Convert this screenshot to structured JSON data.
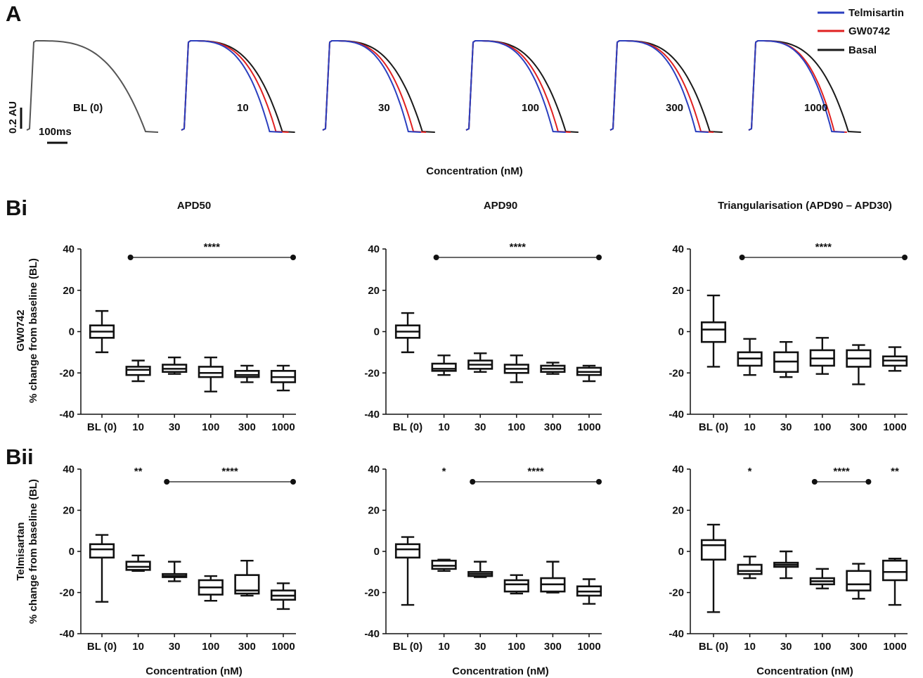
{
  "panels": {
    "A": "A",
    "Bi": "Bi",
    "Bii": "Bii"
  },
  "column_titles": [
    "APD50",
    "APD90",
    "Triangularisation (APD90 – APD30)"
  ],
  "row_axis_titles": {
    "gw": [
      "GW0742",
      "% change from baseline (BL)"
    ],
    "tel": [
      "Telmisartan",
      "% change from baseline (BL)"
    ]
  },
  "x_axis_title": "Concentration (nM)",
  "colors": {
    "telmisartan": "#2b3fbf",
    "gw0742": "#e02020",
    "basal": "#1a1a1a"
  },
  "chart_data": [
    {
      "type": "line",
      "panel": "A",
      "xlabel": "Concentration (nM)",
      "ylabel": "",
      "scale_bars": {
        "vertical": "0.2 AU",
        "horizontal": "100ms"
      },
      "legend": {
        "placement": "top-right",
        "entries": [
          "Telmisartin",
          "GW0742",
          "Basal"
        ]
      },
      "traces": [
        {
          "label": "BL (0)",
          "apd90_ms": {
            "basal": 430
          }
        },
        {
          "label": "10",
          "apd90_ms": {
            "telmisartan": 310,
            "gw0742": 335,
            "basal": 360
          }
        },
        {
          "label": "30",
          "apd90_ms": {
            "telmisartan": 300,
            "gw0742": 320,
            "basal": 355
          }
        },
        {
          "label": "100",
          "apd90_ms": {
            "telmisartan": 305,
            "gw0742": 325,
            "basal": 355
          }
        },
        {
          "label": "300",
          "apd90_ms": {
            "telmisartan": 300,
            "gw0742": 320,
            "basal": 355
          }
        },
        {
          "label": "1000",
          "apd90_ms": {
            "telmisartan": 290,
            "gw0742": 300,
            "basal": 355
          }
        }
      ]
    },
    {
      "type": "box",
      "panel": "Bi",
      "title": "APD50",
      "ylabel": "% change from baseline (BL)",
      "ylim": [
        -40,
        40
      ],
      "categories": [
        "BL (0)",
        "10",
        "30",
        "100",
        "300",
        "1000"
      ],
      "boxes": [
        {
          "min": -10,
          "q1": -3,
          "median": 0,
          "q3": 3,
          "max": 10
        },
        {
          "min": -24,
          "q1": -21,
          "median": -18.5,
          "q3": -17,
          "max": -14
        },
        {
          "min": -20.5,
          "q1": -19.5,
          "median": -18,
          "q3": -16,
          "max": -12.5
        },
        {
          "min": -29,
          "q1": -22,
          "median": -20,
          "q3": -17,
          "max": -12.5
        },
        {
          "min": -24.5,
          "q1": -22,
          "median": -21,
          "q3": -19,
          "max": -16.5
        },
        {
          "min": -28.5,
          "q1": -24.5,
          "median": -22,
          "q3": -19,
          "max": -16.5
        }
      ],
      "significance": [
        {
          "label": "****",
          "from": "10",
          "to": "1000"
        }
      ]
    },
    {
      "type": "box",
      "panel": "Bi",
      "title": "APD90",
      "ylabel": "% change from baseline (BL)",
      "ylim": [
        -40,
        40
      ],
      "categories": [
        "BL (0)",
        "10",
        "30",
        "100",
        "300",
        "1000"
      ],
      "boxes": [
        {
          "min": -10,
          "q1": -3,
          "median": 0,
          "q3": 3,
          "max": 9
        },
        {
          "min": -21,
          "q1": -19,
          "median": -18,
          "q3": -15.5,
          "max": -11.5
        },
        {
          "min": -19.5,
          "q1": -18,
          "median": -16,
          "q3": -14,
          "max": -10.5
        },
        {
          "min": -24.5,
          "q1": -20,
          "median": -18,
          "q3": -16,
          "max": -11.5
        },
        {
          "min": -20.5,
          "q1": -19.5,
          "median": -18,
          "q3": -16.5,
          "max": -15
        },
        {
          "min": -24,
          "q1": -21,
          "median": -19.5,
          "q3": -17.5,
          "max": -16.5
        }
      ],
      "significance": [
        {
          "label": "****",
          "from": "10",
          "to": "1000"
        }
      ]
    },
    {
      "type": "box",
      "panel": "Bi",
      "title": "Triangularisation (APD90 – APD30)",
      "ylabel": "% change from baseline (BL)",
      "ylim": [
        -40,
        40
      ],
      "categories": [
        "BL (0)",
        "10",
        "30",
        "100",
        "300",
        "1000"
      ],
      "boxes": [
        {
          "min": -17,
          "q1": -5,
          "median": 1,
          "q3": 4.5,
          "max": 17.5
        },
        {
          "min": -21,
          "q1": -16.5,
          "median": -13,
          "q3": -10,
          "max": -3.5
        },
        {
          "min": -22,
          "q1": -19.5,
          "median": -14.5,
          "q3": -10,
          "max": -5
        },
        {
          "min": -20.5,
          "q1": -16.5,
          "median": -13,
          "q3": -9,
          "max": -3
        },
        {
          "min": -25.5,
          "q1": -17,
          "median": -13,
          "q3": -9,
          "max": -6.5
        },
        {
          "min": -19,
          "q1": -16.5,
          "median": -14,
          "q3": -12,
          "max": -7.5
        }
      ],
      "significance": [
        {
          "label": "****",
          "from": "10",
          "to": "1000"
        }
      ]
    },
    {
      "type": "box",
      "panel": "Bii",
      "title": "APD50",
      "xlabel": "Concentration (nM)",
      "ylabel": "% change from baseline (BL)",
      "ylim": [
        -40,
        40
      ],
      "categories": [
        "BL (0)",
        "10",
        "30",
        "100",
        "300",
        "1000"
      ],
      "boxes": [
        {
          "min": -24.5,
          "q1": -3,
          "median": 1,
          "q3": 3.5,
          "max": 8
        },
        {
          "min": -9.5,
          "q1": -9,
          "median": -7.5,
          "q3": -5,
          "max": -2
        },
        {
          "min": -14.5,
          "q1": -12.5,
          "median": -12,
          "q3": -11,
          "max": -5
        },
        {
          "min": -24,
          "q1": -21,
          "median": -17.5,
          "q3": -14,
          "max": -12
        },
        {
          "min": -21.5,
          "q1": -20.5,
          "median": -19,
          "q3": -11.5,
          "max": -4.5
        },
        {
          "min": -28,
          "q1": -23.5,
          "median": -21.5,
          "q3": -19,
          "max": -15.5
        }
      ],
      "significance": [
        {
          "label": "**",
          "at": "10"
        },
        {
          "label": "****",
          "from": "30",
          "to": "1000"
        }
      ]
    },
    {
      "type": "box",
      "panel": "Bii",
      "title": "APD90",
      "xlabel": "Concentration (nM)",
      "ylabel": "% change from baseline (BL)",
      "ylim": [
        -40,
        40
      ],
      "categories": [
        "BL (0)",
        "10",
        "30",
        "100",
        "300",
        "1000"
      ],
      "boxes": [
        {
          "min": -26,
          "q1": -3,
          "median": 1,
          "q3": 3.5,
          "max": 7
        },
        {
          "min": -9.5,
          "q1": -8.5,
          "median": -7,
          "q3": -4.5,
          "max": -4
        },
        {
          "min": -12.5,
          "q1": -12,
          "median": -11,
          "q3": -10,
          "max": -5
        },
        {
          "min": -20.5,
          "q1": -19.5,
          "median": -16,
          "q3": -14,
          "max": -11.5
        },
        {
          "min": -20,
          "q1": -19.5,
          "median": -16,
          "q3": -13,
          "max": -5
        },
        {
          "min": -25.5,
          "q1": -21.5,
          "median": -19.5,
          "q3": -17,
          "max": -13.5
        }
      ],
      "significance": [
        {
          "label": "*",
          "at": "10"
        },
        {
          "label": "****",
          "from": "30",
          "to": "1000"
        }
      ]
    },
    {
      "type": "box",
      "panel": "Bii",
      "title": "Triangularisation (APD90 – APD30)",
      "xlabel": "Concentration (nM)",
      "ylabel": "% change from baseline (BL)",
      "ylim": [
        -40,
        40
      ],
      "categories": [
        "BL (0)",
        "10",
        "30",
        "100",
        "300",
        "1000"
      ],
      "boxes": [
        {
          "min": -29.5,
          "q1": -4,
          "median": 3,
          "q3": 5.5,
          "max": 13
        },
        {
          "min": -13,
          "q1": -11,
          "median": -9.5,
          "q3": -6.5,
          "max": -2.5
        },
        {
          "min": -13,
          "q1": -7.5,
          "median": -6.5,
          "q3": -5.5,
          "max": 0
        },
        {
          "min": -18,
          "q1": -16,
          "median": -14.5,
          "q3": -13,
          "max": -8.5
        },
        {
          "min": -23,
          "q1": -19,
          "median": -16,
          "q3": -9.5,
          "max": -6
        },
        {
          "min": -26,
          "q1": -14,
          "median": -10,
          "q3": -4.5,
          "max": -3.5
        }
      ],
      "significance": [
        {
          "label": "*",
          "at": "10"
        },
        {
          "label": "****",
          "from": "100",
          "to": "300"
        },
        {
          "label": "**",
          "at": "1000"
        }
      ]
    }
  ]
}
